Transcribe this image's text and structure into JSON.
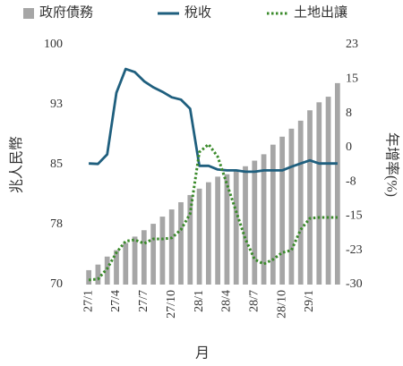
{
  "chart_data": {
    "type": "bar",
    "x_label": "月",
    "y_label": "兆人民幣",
    "y2_label": "年增率(%)",
    "categories": [
      "27/1",
      null,
      null,
      "27/4",
      null,
      null,
      "27/7",
      null,
      null,
      "27/10",
      null,
      null,
      "28/1",
      null,
      null,
      "28/4",
      null,
      null,
      "28/7",
      null,
      null,
      "28/10",
      null,
      null,
      "29/1",
      null,
      null,
      null
    ],
    "ylim": [
      70,
      100
    ],
    "yticks": [
      70,
      {
        "value": 77.5,
        "label": "78"
      },
      85,
      {
        "value": 92.5,
        "label": "93"
      },
      100
    ],
    "y2lim": [
      -30,
      22.5
    ],
    "y2ticks": [
      -30,
      {
        "value": -22.5,
        "label": "-23"
      },
      -15,
      {
        "value": -7.5,
        "label": "-8"
      },
      0,
      {
        "value": 7.5,
        "label": "8"
      },
      15,
      {
        "value": 22.5,
        "label": "23"
      }
    ],
    "legend": "top",
    "series": [
      {
        "name": "政府債務",
        "type": "bar",
        "color": "#a6a6a6",
        "values": [
          71.8,
          72.5,
          73.5,
          74.3,
          75.2,
          76,
          76.8,
          77.6,
          78.5,
          79.4,
          80.3,
          81.2,
          82,
          82.8,
          83.5,
          83.8,
          84.2,
          84.8,
          85.5,
          86.3,
          87.5,
          88.5,
          89.5,
          90.5,
          91.8,
          92.8,
          93.5,
          95.2
        ]
      },
      {
        "name": "稅收",
        "type": "line",
        "axis": "y2",
        "color": "#1f5f7e",
        "line_style": "solid",
        "values": [
          -3.5,
          -3.6,
          -1.5,
          12,
          17.2,
          16.5,
          14.5,
          13.2,
          12.2,
          11,
          10.5,
          8.5,
          -4,
          -4,
          -4.8,
          -5,
          -5,
          -5.3,
          -5.3,
          -5,
          -5,
          -5,
          -4.2,
          -3.5,
          -2.8,
          -3.5,
          -3.5,
          -3.5
        ]
      },
      {
        "name": "土地出讓",
        "type": "line",
        "axis": "y2",
        "color": "#3a8a2a",
        "line_style": "dotted",
        "values": [
          -29,
          -28.8,
          -26.5,
          -23,
          -20.5,
          -20.2,
          -21,
          -20,
          -20,
          -19.8,
          -18,
          -14.5,
          -1,
          0.7,
          -2,
          -8,
          -14,
          -20,
          -24.5,
          -25.5,
          -24.5,
          -23,
          -22.5,
          -18,
          -15.5,
          -15.3,
          -15.3,
          -15.3
        ]
      }
    ]
  }
}
